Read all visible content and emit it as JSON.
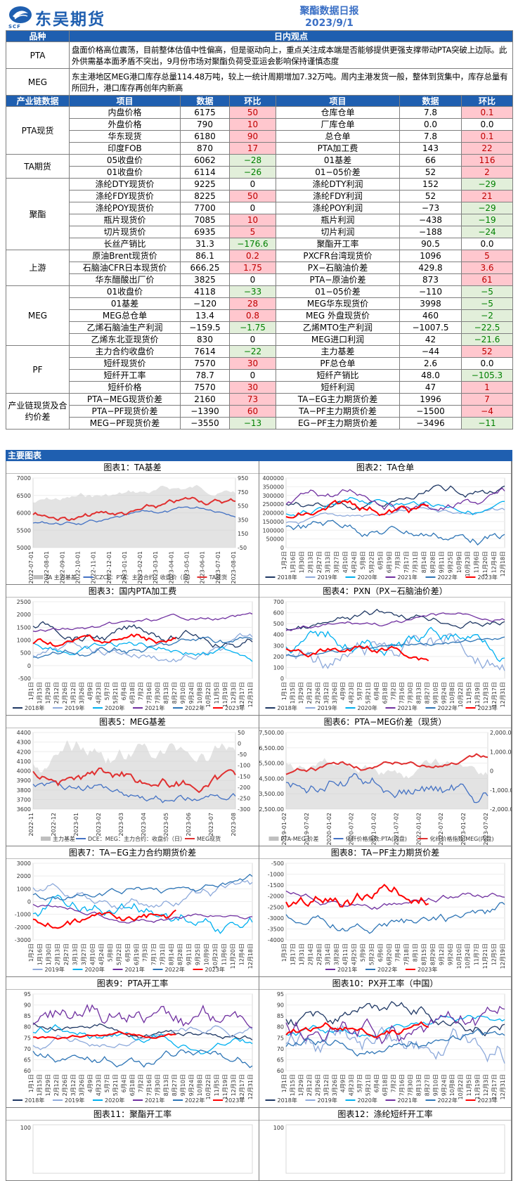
{
  "header": {
    "logo_text": "东吴期货",
    "logo_sub": "SCF",
    "title": "聚酯数据日报",
    "date": "2023/9/1"
  },
  "views": {
    "col_variety": "品种",
    "col_view": "日内观点",
    "rows": [
      {
        "name": "PTA",
        "text": "盘面价格高位震荡，目前整体估值中性偏高，但是驱动向上，重点关注成本端是否能够提供更强支撑带动PTA突破上边际。此外供需基本面矛盾不突出，9月份市场对聚酯负荷受亚运会影响保持谨慎态度"
      },
      {
        "name": "MEG",
        "text": "东主港地区MEG港口库存总量114.48万吨，较上一统计周期增加7.32万吨。周内主港发货一般，整体到货集中，库存总量有所回升，港口库存再创年内新高"
      }
    ]
  },
  "data_table": {
    "headers": [
      "产业链数据",
      "项目",
      "数据",
      "环比",
      "项目",
      "数据",
      "环比"
    ],
    "groups": [
      {
        "name": "PTA现货",
        "rows": [
          [
            "内盘价格",
            "6175",
            "50",
            "r",
            "仓库仓单",
            "7.8",
            "0.1",
            "r"
          ],
          [
            "外盘价格",
            "790",
            "10",
            "r",
            "厂库仓单",
            "0.0",
            "0.0",
            ""
          ],
          [
            "华东现货",
            "6180",
            "90",
            "r",
            "总仓单",
            "7.8",
            "0.1",
            "r"
          ],
          [
            "印度FOB",
            "870",
            "17",
            "r",
            "PTA加工费",
            "143",
            "22",
            "r"
          ]
        ]
      },
      {
        "name": "TA期货",
        "rows": [
          [
            "05收盘价",
            "6062",
            "−28",
            "g",
            "01基差",
            "66",
            "116",
            "r"
          ],
          [
            "01收盘价",
            "6114",
            "−26",
            "g",
            "01−05价差",
            "52",
            "2",
            "r"
          ]
        ]
      },
      {
        "name": "聚酯",
        "rows": [
          [
            "涤纶DTY现货价",
            "9225",
            "0",
            "",
            "涤纶DTY利润",
            "152",
            "−29",
            "g"
          ],
          [
            "涤纶FDY现货价",
            "8225",
            "50",
            "r",
            "涤纶FDY利润",
            "52",
            "21",
            "r"
          ],
          [
            "涤纶POY现货价",
            "7700",
            "0",
            "",
            "涤纶POY利润",
            "−73",
            "−29",
            "g"
          ],
          [
            "瓶片现货价",
            "7085",
            "10",
            "r",
            "瓶片利润",
            "−438",
            "−19",
            "g"
          ],
          [
            "切片现货价",
            "6935",
            "5",
            "r",
            "切片利润",
            "−188",
            "−24",
            "g"
          ],
          [
            "长丝产销比",
            "31.3",
            "−176.6",
            "g",
            "聚酯开工率",
            "90.5",
            "0.0",
            ""
          ]
        ]
      },
      {
        "name": "上游",
        "rows": [
          [
            "原油Brent现货价",
            "86.1",
            "0.2",
            "r",
            "PXCFR台湾现货价",
            "1096",
            "5",
            "r"
          ],
          [
            "石脑油CFR日本现货价",
            "666.25",
            "1.75",
            "r",
            "PX−石脑油价差",
            "429.8",
            "3.6",
            "r"
          ],
          [
            "华东醋酸出厂价",
            "3825",
            "0",
            "",
            "PTA−原油价差",
            "873",
            "61",
            "r"
          ]
        ]
      },
      {
        "name": "MEG",
        "rows": [
          [
            "01收盘价",
            "4118",
            "−33",
            "g",
            "01−05价差",
            "−110",
            "−5",
            "g"
          ],
          [
            "01基差",
            "−120",
            "28",
            "r",
            "MEG华东现货价",
            "3998",
            "−5",
            "g"
          ],
          [
            "MEG总仓单",
            "13.4",
            "0.8",
            "r",
            "MEG 外盘现货价",
            "460",
            "−2",
            "g"
          ],
          [
            "乙烯石脑油生产利润",
            "−159.5",
            "−1.75",
            "g",
            "乙烯MTO生产利润",
            "−1007.5",
            "−22.5",
            "g"
          ],
          [
            "乙烯东北亚现货价",
            "830",
            "0",
            "",
            "MEG进口利润",
            "42",
            "−21.6",
            "g"
          ]
        ]
      },
      {
        "name": "PF",
        "rows": [
          [
            "主力合约收盘价",
            "7614",
            "−22",
            "g",
            "主力基差",
            "−44",
            "52",
            "r"
          ],
          [
            "短纤现货价",
            "7570",
            "30",
            "r",
            "PF总仓单",
            "2.6",
            "0.0",
            ""
          ],
          [
            "短纤开工率",
            "78.7",
            "0",
            "",
            "短纤产销比",
            "48.0",
            "−105.3",
            "g"
          ],
          [
            "短纤价格",
            "7570",
            "30",
            "r",
            "短纤利润",
            "47",
            "1",
            "r"
          ]
        ]
      },
      {
        "name": "产业链现货及合约价差",
        "rows": [
          [
            "PTA−MEG现货价差",
            "2160",
            "73",
            "r",
            "TA−EG主力期货价差",
            "1996",
            "7",
            "r"
          ],
          [
            "PTA−PF现货价差",
            "−1390",
            "60",
            "r",
            "TA−PF主力期货价差",
            "−1500",
            "−4",
            "r"
          ],
          [
            "MEG−PF现货价差",
            "−3550",
            "−13",
            "g",
            "EG−PF主力期货价差",
            "−3496",
            "−11",
            "g"
          ]
        ]
      }
    ]
  },
  "charts_section": {
    "title": "主要图表",
    "panels": [
      {
        "title": "图表1：TA基差",
        "left_ticks": [
          "7000",
          "6500",
          "6000",
          "5500",
          "5000"
        ],
        "right_ticks": [
          "950",
          "750",
          "550",
          "350",
          "150",
          "-50"
        ],
        "x_ticks": [
          "2022-07-01",
          "2022-08-01",
          "2022-09-01",
          "2022-10-01",
          "2022-11-01",
          "2022-12-01",
          "2023-01-01",
          "2023-02-01",
          "2023-03-01",
          "2023-04-01",
          "2023-05-01",
          "2023-06-01",
          "2023-07-01",
          "2023-08-01"
        ],
        "legend": [
          "TA 主力基差",
          "CZCE：PTA：主力合约：收盘价（日）",
          "TA现货"
        ]
      },
      {
        "title": "图表2：TA仓单",
        "left_ticks": [
          "400000",
          "350000",
          "300000",
          "250000",
          "200000",
          "150000",
          "100000",
          "50000",
          "0"
        ],
        "x_ticks": [
          "1月2日",
          "1月16日",
          "1月30日",
          "2月13日",
          "2月27日",
          "3月13日",
          "3月27日",
          "4月10日",
          "4月24日",
          "5月8日",
          "5月22日",
          "6月5日",
          "6月19日",
          "7月3日",
          "7月17日",
          "7月31日",
          "8月14日",
          "8月28日",
          "9月11日",
          "9月25日",
          "10月9日",
          "10月23日",
          "11月6日",
          "11月20日",
          "12月4日",
          "12月18日"
        ],
        "legend": [
          "2018年",
          "2019年",
          "2020年",
          "2021年",
          "2022年",
          "2023年"
        ]
      },
      {
        "title": "图表3：国内PTA加工费",
        "left_ticks": [
          "2500",
          "2000",
          "1500",
          "1000",
          "500",
          "0",
          "-500"
        ],
        "x_ticks": [
          "1月1日",
          "1月15日",
          "1月29日",
          "2月12日",
          "2月26日",
          "3月12日",
          "3月26日",
          "4月9日",
          "4月23日",
          "5月7日",
          "5月21日",
          "6月4日",
          "6月18日",
          "7月2日",
          "7月16日",
          "7月30日",
          "8月13日",
          "8月27日",
          "9月10日",
          "9月24日",
          "10月8日",
          "10月22日",
          "11月5日",
          "11月19日",
          "12月3日",
          "12月17日",
          "12月31日"
        ],
        "legend": [
          "2018年",
          "2019年",
          "2020年",
          "2021年",
          "2022年",
          "2023年"
        ]
      },
      {
        "title": "图表4：PXN（PX−石脑油价差）",
        "left_ticks": [
          "700",
          "600",
          "500",
          "400",
          "300",
          "200",
          "100",
          "0"
        ],
        "x_ticks": [
          "1月1日",
          "1月15日",
          "1月29日",
          "2月12日",
          "2月26日",
          "3月12日",
          "3月26日",
          "4月9日",
          "4月23日",
          "5月7日",
          "5月21日",
          "6月4日",
          "6月18日",
          "7月2日",
          "7月16日",
          "7月30日",
          "8月13日",
          "8月27日",
          "9月10日",
          "9月24日",
          "10月8日",
          "10月22日",
          "11月5日",
          "11月19日",
          "12月3日",
          "12月17日",
          "12月31日"
        ],
        "legend": [
          "2018年",
          "2019年",
          "2020年",
          "2021年",
          "2022年",
          "2023年"
        ]
      },
      {
        "title": "图表5：MEG基差",
        "left_ticks": [
          "4400",
          "4300",
          "4200",
          "4100",
          "4000",
          "3900",
          "3800",
          "3700",
          "3600"
        ],
        "right_ticks": [
          "50",
          "0",
          "-50",
          "-100",
          "-150",
          "-200",
          "-250",
          "-300"
        ],
        "x_ticks": [
          "2022-11",
          "2022-12",
          "2023-01",
          "2023-02",
          "2023-03",
          "2023-04",
          "2023-05",
          "2023-06",
          "2023-07",
          "2023-08"
        ],
        "legend": [
          "主力基差",
          "DCE：MEG：主力合约：收盘价（日）",
          "MEG现货"
        ]
      },
      {
        "title": "图表6：PTA−MEG价差（现货）",
        "left_ticks": [
          "7,500.00",
          "6,500.00",
          "5,500.00",
          "4,500.00",
          "3,500.00",
          "2,500.00"
        ],
        "right_ticks": [
          "2,000.00",
          "1,000.00",
          "0",
          "-1,000.00",
          "-2,000.00"
        ],
        "x_ticks": [
          "2019-01-02",
          "2019-07-02",
          "2020-01-02",
          "2020-07-02",
          "2021-01-02",
          "2021-07-02",
          "2022-01-02",
          "2022-07-02",
          "2023-01-02",
          "2023-07-02"
        ],
        "legend": [
          "PTA-MEG 价差",
          "化纤价格指数:PTA(内盘)",
          "化纤价格指数:MEG(内盘)"
        ]
      },
      {
        "title": "图表7：TA−EG主力合约期货价差",
        "left_ticks": [
          "3000",
          "2000",
          "1000",
          "0",
          "-1000",
          "-2000",
          "-3000"
        ],
        "x_ticks": [
          "1月2日",
          "1月16日",
          "1月30日",
          "2月13日",
          "2月27日",
          "3月13日",
          "3月27日",
          "4月10日",
          "4月24日",
          "5月8日",
          "5月22日",
          "6月5日",
          "6月19日",
          "7月3日",
          "7月17日",
          "7月31日",
          "8月14日",
          "8月28日",
          "9月11日",
          "9月25日",
          "10月9日",
          "10月23日",
          "11月6日",
          "11月20日",
          "12月4日",
          "12月18日"
        ],
        "legend": [
          "2019年",
          "2020年",
          "2021年",
          "2022年",
          "2023年"
        ]
      },
      {
        "title": "图表8：TA−PF主力期货价差",
        "left_ticks": [
          "-500",
          "-1000",
          "-1500",
          "-2000",
          "-2500",
          "-3000",
          "-3500",
          "-4000"
        ],
        "x_ticks": [
          "1月3日",
          "1月17日",
          "1月31日",
          "2月14日",
          "2月28日",
          "3月14日",
          "3月28日",
          "4月11日",
          "4月25日",
          "5月9日",
          "5月23日",
          "6月6日",
          "6月20日",
          "7月4日",
          "7月18日",
          "8月1日",
          "8月15日",
          "8月29日",
          "9月12日",
          "9月26日",
          "10月10日",
          "10月24日",
          "11月7日",
          "11月21日",
          "12月5日",
          "12月19日"
        ],
        "legend": [
          "2021年",
          "2022年",
          "2023年"
        ]
      },
      {
        "title": "图表9：PTA开工率",
        "left_ticks": [
          "95",
          "90",
          "85",
          "80",
          "75",
          "70",
          "65",
          "60"
        ],
        "x_ticks": [
          "1月1日",
          "1月15日",
          "1月29日",
          "2月12日",
          "2月26日",
          "3月12日",
          "3月26日",
          "4月9日",
          "4月23日",
          "5月7日",
          "5月21日",
          "6月4日",
          "6月18日",
          "7月2日",
          "7月16日",
          "7月30日",
          "8月13日",
          "8月27日",
          "9月10日",
          "9月24日",
          "10月8日",
          "10月22日",
          "11月5日",
          "11月19日",
          "12月3日",
          "12月17日",
          "12月31日"
        ],
        "legend": [
          "2018年",
          "2019年",
          "2020年",
          "2021年",
          "2022年",
          "2023年"
        ]
      },
      {
        "title": "图表10：PX开工率（中国）",
        "left_ticks": [
          "95",
          "90",
          "85",
          "80",
          "75",
          "70",
          "65",
          "60"
        ],
        "x_ticks": [
          "1月1日",
          "1月15日",
          "1月29日",
          "2月12日",
          "2月26日",
          "3月12日",
          "3月26日",
          "4月9日",
          "4月23日",
          "5月7日",
          "5月21日",
          "6月4日",
          "6月18日",
          "7月2日",
          "7月16日",
          "7月30日",
          "8月13日",
          "8月27日",
          "9月10日",
          "9月24日",
          "10月8日",
          "10月22日",
          "11月5日",
          "11月19日",
          "12月3日",
          "12月17日",
          "12月31日"
        ],
        "legend": [
          "2018年",
          "2019年",
          "2020年",
          "2021年",
          "2022年",
          "2023年"
        ]
      },
      {
        "title": "图表11：聚酯开工率",
        "left_ticks": [
          "100"
        ],
        "x_ticks": [],
        "legend": []
      },
      {
        "title": "图表12：涤纶短纤开工率",
        "left_ticks": [
          "100"
        ],
        "x_ticks": [],
        "legend": []
      }
    ]
  },
  "series_colors": {
    "2018年": "#1f3864",
    "2019年": "#8eaadb",
    "2020年": "#00b0f0",
    "2021年": "#7030a0",
    "2022年": "#2e75b6",
    "2023年": "#ff0000",
    "gray": "#a6a6a6",
    "blue": "#4472c4",
    "red": "#e03030"
  }
}
